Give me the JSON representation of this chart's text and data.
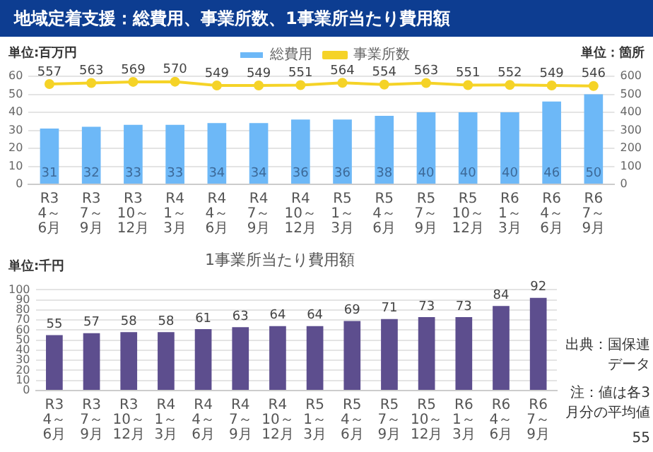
{
  "chart_data": [
    {
      "type": "bar",
      "title": "地域定着支援：総費用、事業所数、1事業所当たり費用額",
      "categories": [
        "R3 4～6月",
        "R3 7～9月",
        "R3 10～12月",
        "R4 1～3月",
        "R4 4～6月",
        "R4 7～9月",
        "R4 10～12月",
        "R5 1～3月",
        "R5 4～6月",
        "R5 7～9月",
        "R5 10～12月",
        "R6 1～3月",
        "R6 4～6月",
        "R6 7～9月"
      ],
      "series": [
        {
          "name": "総費用",
          "type": "bar",
          "color": "#6db8f7",
          "values": [
            31,
            32,
            33,
            33,
            34,
            34,
            36,
            36,
            38,
            40,
            40,
            40,
            46,
            50
          ]
        },
        {
          "name": "事業所数",
          "type": "line",
          "axis": "y2",
          "color": "#f5d327",
          "values": [
            557,
            563,
            569,
            570,
            549,
            549,
            551,
            564,
            554,
            563,
            551,
            552,
            549,
            546
          ]
        }
      ],
      "ylabel": "単位:百万円",
      "y2label": "単位：箇所",
      "ylim": [
        0,
        60
      ],
      "yticks": [
        0,
        10,
        20,
        30,
        40,
        50,
        60
      ],
      "y2lim": [
        0,
        600
      ],
      "y2ticks": [
        0,
        100,
        200,
        300,
        400,
        500,
        600
      ],
      "grid": "y",
      "legend": "top",
      "data_labels": true,
      "marker": "circle"
    },
    {
      "type": "bar",
      "title": "1事業所当たり費用額",
      "categories": [
        "R3 4～6月",
        "R3 7～9月",
        "R3 10～12月",
        "R4 1～3月",
        "R4 4～6月",
        "R4 7～9月",
        "R4 10～12月",
        "R5 1～3月",
        "R5 4～6月",
        "R5 7～9月",
        "R5 10～12月",
        "R6 1～3月",
        "R6 4～6月",
        "R6 7～9月"
      ],
      "values": [
        55,
        57,
        58,
        58,
        61,
        63,
        64,
        64,
        69,
        71,
        73,
        73,
        84,
        92
      ],
      "color": "#5d4e8e",
      "ylabel": "単位:千円",
      "ylim": [
        0,
        100
      ],
      "yticks": [
        0,
        10,
        20,
        30,
        40,
        50,
        60,
        70,
        80,
        90,
        100
      ],
      "grid": "y",
      "data_labels": true,
      "annotations": [
        "出典：国保連データ",
        "注：値は各3月分の平均値",
        "55"
      ]
    }
  ]
}
